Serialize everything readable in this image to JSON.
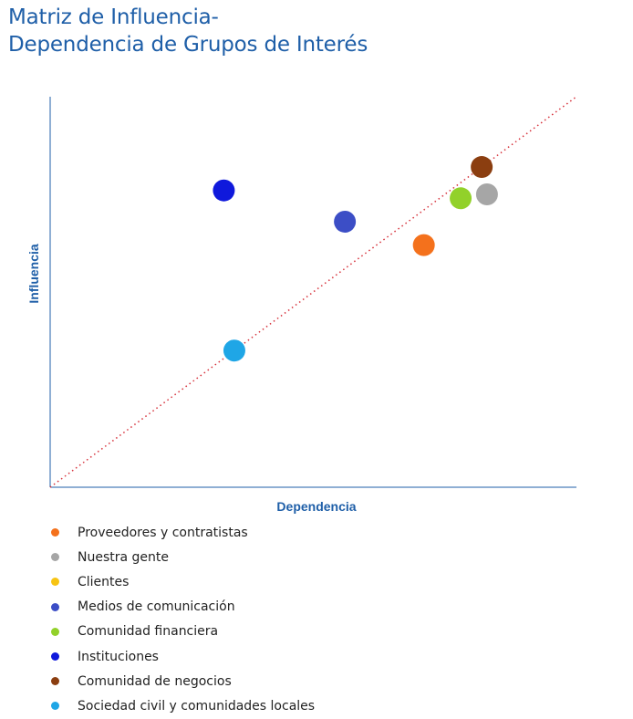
{
  "title_line1": "Matriz de Influencia-",
  "title_line2": "Dependencia de Grupos de Interés",
  "chart_data": {
    "type": "scatter",
    "title": "Matriz de Influencia- Dependencia de Grupos de Interés",
    "xlabel": "Dependencia",
    "ylabel": "Influencia",
    "xlim": [
      0,
      10
    ],
    "ylim": [
      0,
      10
    ],
    "grid": false,
    "diagonal_reference_line": true,
    "legend_position": "bottom",
    "series": [
      {
        "name": "Proveedores y contratistas",
        "color": "#f4711c",
        "x": 7.1,
        "y": 6.2
      },
      {
        "name": "Nuestra gente",
        "color": "#a6a6a6",
        "x": 8.3,
        "y": 7.5
      },
      {
        "name": "Clientes",
        "color": "#f7c413",
        "x": null,
        "y": null
      },
      {
        "name": "Medios de comunicación",
        "color": "#3c4ec6",
        "x": 5.6,
        "y": 6.8
      },
      {
        "name": "Comunidad financiera",
        "color": "#92d12a",
        "x": 7.8,
        "y": 7.4
      },
      {
        "name": "Instituciones",
        "color": "#0f19dc",
        "x": 3.3,
        "y": 7.6
      },
      {
        "name": "Comunidad de negocios",
        "color": "#8b3e10",
        "x": 8.2,
        "y": 8.2
      },
      {
        "name": "Sociedad civil y comunidades locales",
        "color": "#1fa6e6",
        "x": 3.5,
        "y": 3.5
      }
    ]
  }
}
